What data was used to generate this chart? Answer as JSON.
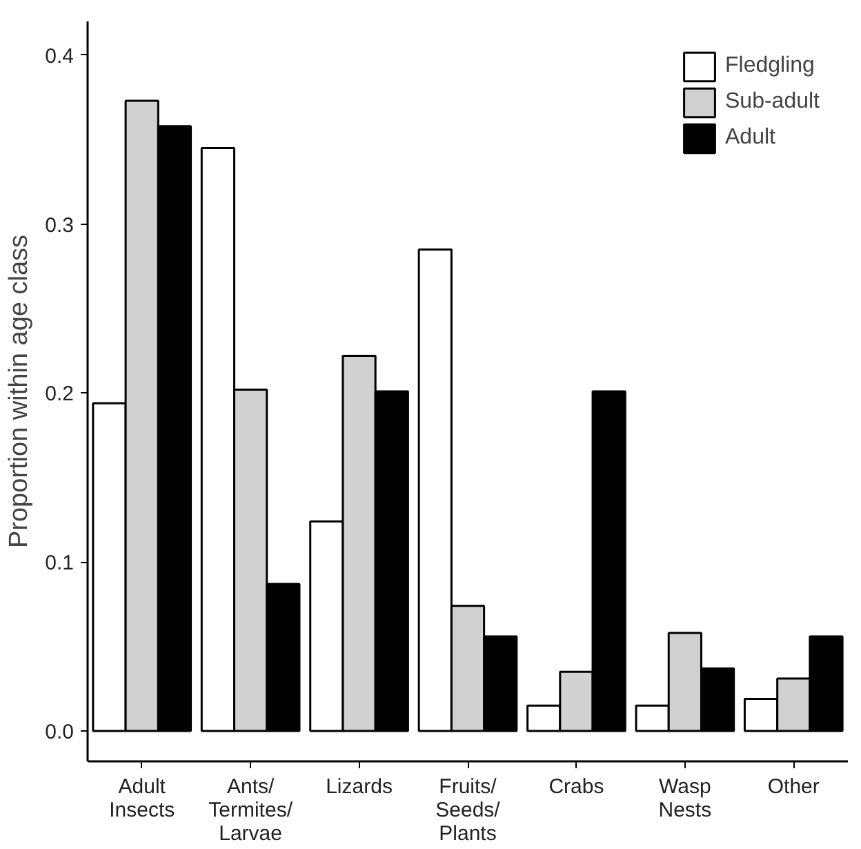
{
  "chart_data": {
    "type": "bar",
    "ylabel": "Proportion within age class",
    "categories": [
      "Adult\nInsects",
      "Ants/\nTermites/\nLarvae",
      "Lizards",
      "Fruits/\nSeeds/\nPlants",
      "Crabs",
      "Wasp\nNests",
      "Other"
    ],
    "series": [
      {
        "name": "Fledgling",
        "color": "#ffffff",
        "values": [
          0.194,
          0.345,
          0.124,
          0.285,
          0.015,
          0.015,
          0.019
        ]
      },
      {
        "name": "Sub-adult",
        "color": "#d0d1d0",
        "values": [
          0.373,
          0.202,
          0.222,
          0.074,
          0.035,
          0.058,
          0.031
        ]
      },
      {
        "name": "Adult",
        "color": "#000000",
        "values": [
          0.358,
          0.087,
          0.201,
          0.056,
          0.201,
          0.037,
          0.056
        ]
      }
    ],
    "ylim": [
      -0.018,
      0.42
    ],
    "yticks": [
      {
        "value": 0,
        "label": "0.0"
      },
      0.1,
      0.2,
      0.3,
      0.4
    ],
    "grid": false,
    "legend": "top right"
  }
}
